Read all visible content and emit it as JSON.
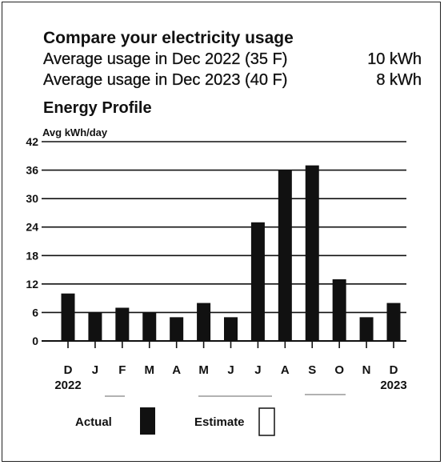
{
  "header": {
    "title": "Compare your electricity usage",
    "rows": [
      {
        "label": "Average usage in Dec 2022 (35 F)",
        "value": "10 kWh"
      },
      {
        "label": "Average usage in Dec 2023 (40 F)",
        "value": "8 kWh"
      }
    ],
    "subtitle": "Energy Profile"
  },
  "chart_data": {
    "type": "bar",
    "ylabel": "Avg kWh/day",
    "ylim": [
      0,
      42
    ],
    "yticks": [
      0,
      6,
      12,
      18,
      24,
      30,
      36,
      42
    ],
    "ytick_labels": [
      "0",
      "6",
      "12",
      "18",
      "24",
      "30",
      "36",
      "42"
    ],
    "grid": true,
    "categories": [
      "D",
      "J",
      "F",
      "M",
      "A",
      "M",
      "J",
      "J",
      "A",
      "S",
      "O",
      "N",
      "D"
    ],
    "year_labels": [
      {
        "index": 0,
        "label": "2022"
      },
      {
        "index": 12,
        "label": "2023"
      }
    ],
    "values": [
      10,
      6,
      7,
      6,
      5,
      8,
      5,
      25,
      36,
      37,
      13,
      5,
      8
    ],
    "bar_color": "#111111"
  },
  "legend": {
    "actual_label": "Actual",
    "estimate_label": "Estimate"
  }
}
